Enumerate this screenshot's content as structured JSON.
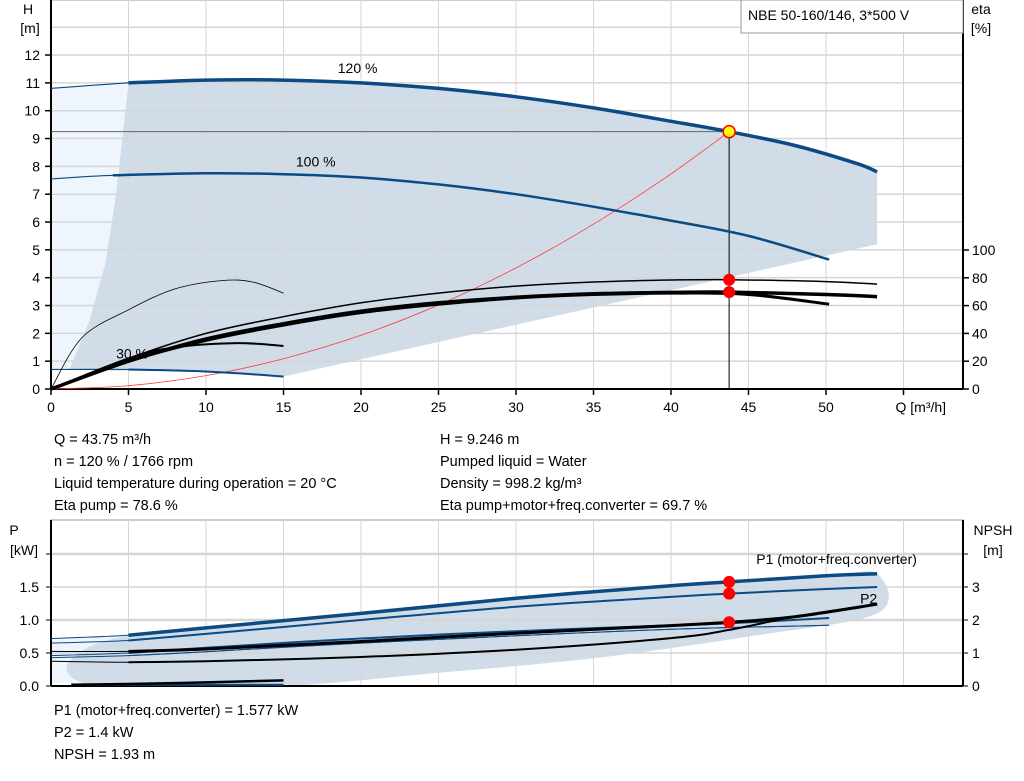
{
  "product_title": "NBE 50-160/146, 3*500 V",
  "colors": {
    "curve_blue": "#0b4a85",
    "shade": "#d0dce8",
    "shade_light": "#eef5fc",
    "system_curve": "#ff3b3b",
    "duty_point": "#ffff00",
    "marker": "#ff0000",
    "grid": "#d6d6d6"
  },
  "chart_data": [
    {
      "type": "line",
      "xlabel": "Q [m³/h]",
      "ylabel": [
        "H",
        "[m]"
      ],
      "y2label": [
        "eta",
        "[%]"
      ],
      "x_ticks": [
        0,
        5,
        10,
        15,
        20,
        25,
        30,
        35,
        40,
        45,
        50
      ],
      "y_ticks": [
        0,
        1,
        2,
        3,
        4,
        5,
        6,
        7,
        8,
        9,
        10,
        11,
        12
      ],
      "y2_ticks": [
        0,
        20,
        40,
        60,
        80,
        100
      ],
      "xlim": [
        0,
        58.9
      ],
      "ylim": [
        0,
        14
      ],
      "y2lim": [
        0,
        280
      ],
      "grid": true,
      "speed_labels": [
        {
          "text": "120 %",
          "x": 18.5,
          "y": 11.35
        },
        {
          "text": "100 %",
          "x": 15.8,
          "y": 8.0
        },
        {
          "text": "30 %",
          "x": 4.2,
          "y": 1.1
        }
      ],
      "head_curves": [
        {
          "speed": "120 %",
          "points": [
            [
              0,
              10.8
            ],
            [
              5,
              11.0
            ],
            [
              10,
              11.1
            ],
            [
              15,
              11.1
            ],
            [
              20,
              11.0
            ],
            [
              25,
              10.8
            ],
            [
              30,
              10.5
            ],
            [
              35,
              10.1
            ],
            [
              40,
              9.62
            ],
            [
              43.75,
              9.246
            ],
            [
              48,
              8.75
            ],
            [
              52,
              8.1
            ],
            [
              53.3,
              7.8
            ]
          ]
        },
        {
          "speed": "100 %",
          "points": [
            [
              0,
              7.55
            ],
            [
              4,
              7.68
            ],
            [
              10,
              7.75
            ],
            [
              15,
              7.72
            ],
            [
              20,
              7.6
            ],
            [
              25,
              7.35
            ],
            [
              30,
              7.0
            ],
            [
              35,
              6.55
            ],
            [
              40,
              6.05
            ],
            [
              45,
              5.5
            ],
            [
              50.2,
              4.65
            ]
          ]
        },
        {
          "speed": "30 %",
          "points": [
            [
              0,
              0.7
            ],
            [
              5,
              0.7
            ],
            [
              10,
              0.63
            ],
            [
              15,
              0.45
            ]
          ]
        }
      ],
      "eta_curves": [
        {
          "points": [
            [
              0,
              0
            ],
            [
              5,
              22
            ],
            [
              10,
              40
            ],
            [
              15,
              52
            ],
            [
              20,
              62
            ],
            [
              25,
              69
            ],
            [
              30,
              74
            ],
            [
              35,
              77
            ],
            [
              40,
              78.4
            ],
            [
              43.75,
              78.6
            ],
            [
              50,
              77.3
            ],
            [
              53.3,
              75.5
            ]
          ]
        },
        {
          "points": [
            [
              0,
              0
            ],
            [
              5,
              20
            ],
            [
              10,
              36
            ],
            [
              15,
              47
            ],
            [
              20,
              56
            ],
            [
              25,
              62
            ],
            [
              30,
              66
            ],
            [
              35,
              68.5
            ],
            [
              40,
              69.5
            ],
            [
              43.75,
              69.7
            ],
            [
              50,
              68
            ],
            [
              53.3,
              66.5
            ]
          ]
        },
        {
          "points": [
            [
              0,
              0
            ],
            [
              5,
              20
            ],
            [
              10,
              35
            ],
            [
              15,
              46
            ],
            [
              20,
              55
            ],
            [
              25,
              61
            ],
            [
              30,
              65.5
            ],
            [
              35,
              68
            ],
            [
              40,
              69
            ],
            [
              45,
              68
            ],
            [
              50.2,
              61
            ]
          ]
        },
        {
          "points": [
            [
              0,
              0
            ],
            [
              2,
              37
            ],
            [
              5,
              57
            ],
            [
              8,
              72
            ],
            [
              11,
              78
            ],
            [
              13,
              77
            ],
            [
              15,
              69
            ]
          ]
        },
        {
          "points": [
            [
              0,
              0
            ],
            [
              5,
              22
            ],
            [
              8,
              30
            ],
            [
              12,
              33
            ],
            [
              15,
              31
            ]
          ]
        }
      ],
      "system_curve": {
        "points": [
          [
            0,
            0
          ],
          [
            5,
            0.12
          ],
          [
            10,
            0.48
          ],
          [
            15,
            1.09
          ],
          [
            20,
            1.93
          ],
          [
            25,
            3.02
          ],
          [
            30,
            4.35
          ],
          [
            35,
            5.92
          ],
          [
            40,
            7.73
          ],
          [
            43.75,
            9.246
          ]
        ]
      },
      "duty_point": {
        "Q": 43.75,
        "H": 9.246,
        "eta_pump": 78.6,
        "eta_total": 69.7
      },
      "envelope_upper": [
        [
          5,
          11.0
        ],
        [
          10,
          11.1
        ],
        [
          15,
          11.1
        ],
        [
          20,
          11.0
        ],
        [
          25,
          10.8
        ],
        [
          30,
          10.5
        ],
        [
          35,
          10.1
        ],
        [
          40,
          9.62
        ],
        [
          43.75,
          9.246
        ],
        [
          48,
          8.75
        ],
        [
          52,
          8.1
        ],
        [
          53.3,
          7.8
        ]
      ],
      "envelope_lower": [
        [
          53.3,
          5.2
        ],
        [
          15,
          0.45
        ],
        [
          10,
          0.63
        ],
        [
          5,
          0.7
        ],
        [
          1.2,
          0.7
        ]
      ],
      "envelope_left": [
        [
          1.2,
          0.7
        ],
        [
          2.5,
          2.5
        ],
        [
          3.5,
          4.5
        ],
        [
          4.2,
          7
        ],
        [
          5,
          11.0
        ]
      ]
    },
    {
      "type": "line",
      "ylabel": [
        "P",
        "[kW]"
      ],
      "y2label": [
        "NPSH",
        "[m]"
      ],
      "y_ticks": [
        "0.0",
        "0.5",
        "1.0",
        "1.5"
      ],
      "y2_ticks": [
        0,
        1,
        2,
        3
      ],
      "ylim": [
        0,
        2.5
      ],
      "y2lim": [
        0,
        5
      ],
      "grid": true,
      "curve_labels": [
        {
          "text": "P1 (motor+freq.converter)",
          "x": 45.5,
          "y": 1.85
        },
        {
          "text": "P2",
          "x": 52.2,
          "y": 1.25
        }
      ],
      "power_curves": [
        {
          "points": [
            [
              0,
              0.72
            ],
            [
              5,
              0.77
            ],
            [
              10,
              0.88
            ],
            [
              20,
              1.1
            ],
            [
              30,
              1.33
            ],
            [
              40,
              1.52
            ],
            [
              43.75,
              1.577
            ],
            [
              50,
              1.67
            ],
            [
              53.3,
              1.7
            ]
          ]
        },
        {
          "points": [
            [
              0,
              0.65
            ],
            [
              5,
              0.69
            ],
            [
              10,
              0.79
            ],
            [
              20,
              1.0
            ],
            [
              30,
              1.2
            ],
            [
              40,
              1.35
            ],
            [
              43.75,
              1.4
            ],
            [
              50,
              1.47
            ],
            [
              53.3,
              1.5
            ]
          ]
        },
        {
          "points": [
            [
              0,
              0.46
            ],
            [
              5,
              0.5
            ],
            [
              10,
              0.58
            ],
            [
              20,
              0.72
            ],
            [
              30,
              0.83
            ],
            [
              40,
              0.92
            ],
            [
              43.75,
              0.95
            ],
            [
              50.2,
              1.03
            ]
          ]
        },
        {
          "points": [
            [
              0,
              0.43
            ],
            [
              5,
              0.46
            ],
            [
              10,
              0.52
            ],
            [
              20,
              0.65
            ],
            [
              30,
              0.76
            ],
            [
              40,
              0.86
            ],
            [
              50.2,
              0.92
            ]
          ]
        },
        {
          "points": [
            [
              1.5,
              0.02
            ],
            [
              5,
              0.02
            ],
            [
              10,
              0.02
            ],
            [
              15,
              0.02
            ]
          ]
        }
      ],
      "npsh_curves": [
        {
          "points": [
            [
              0,
              1.05
            ],
            [
              5,
              1.05
            ],
            [
              10,
              1.12
            ],
            [
              20,
              1.35
            ],
            [
              30,
              1.6
            ],
            [
              40,
              1.83
            ],
            [
              43.75,
              1.93
            ],
            [
              48,
              2.1
            ],
            [
              53.3,
              2.48
            ]
          ]
        },
        {
          "points": [
            [
              0,
              0.75
            ],
            [
              5,
              0.72
            ],
            [
              10,
              0.75
            ],
            [
              20,
              0.88
            ],
            [
              30,
              1.1
            ],
            [
              40,
              1.45
            ],
            [
              43.75,
              1.7
            ],
            [
              48,
              2.1
            ],
            [
              53.3,
              2.48
            ]
          ]
        },
        {
          "points": [
            [
              1.3,
              0.04
            ],
            [
              5,
              0.06
            ],
            [
              10,
              0.11
            ],
            [
              15,
              0.17
            ]
          ]
        }
      ],
      "duty_point": {
        "P1": 1.577,
        "P2": 1.4,
        "NPSH": 1.93
      },
      "envelope": [
        [
          5,
          0.77
        ],
        [
          10,
          0.88
        ],
        [
          20,
          1.1
        ],
        [
          30,
          1.33
        ],
        [
          40,
          1.52
        ],
        [
          50,
          1.67
        ],
        [
          53.3,
          1.7
        ],
        [
          53.3,
          1.1
        ],
        [
          45,
          0.75
        ],
        [
          35,
          0.42
        ],
        [
          25,
          0.2
        ],
        [
          15,
          0.0
        ],
        [
          5,
          0.0
        ],
        [
          2,
          0.05
        ],
        [
          1,
          0.3
        ],
        [
          2.5,
          0.6
        ],
        [
          5,
          0.77
        ]
      ]
    }
  ],
  "info_top": {
    "left": [
      "Q = 43.75 m³/h",
      "n = 120 % / 1766 rpm",
      "Liquid temperature during operation = 20 °C",
      "Eta pump = 78.6 %"
    ],
    "right": [
      "H = 9.246 m",
      "Pumped liquid = Water",
      "Density = 998.2 kg/m³",
      "Eta pump+motor+freq.converter = 69.7 %"
    ]
  },
  "info_bottom": [
    "P1 (motor+freq.converter) = 1.577 kW",
    "P2 = 1.4 kW",
    "NPSH = 1.93 m"
  ]
}
